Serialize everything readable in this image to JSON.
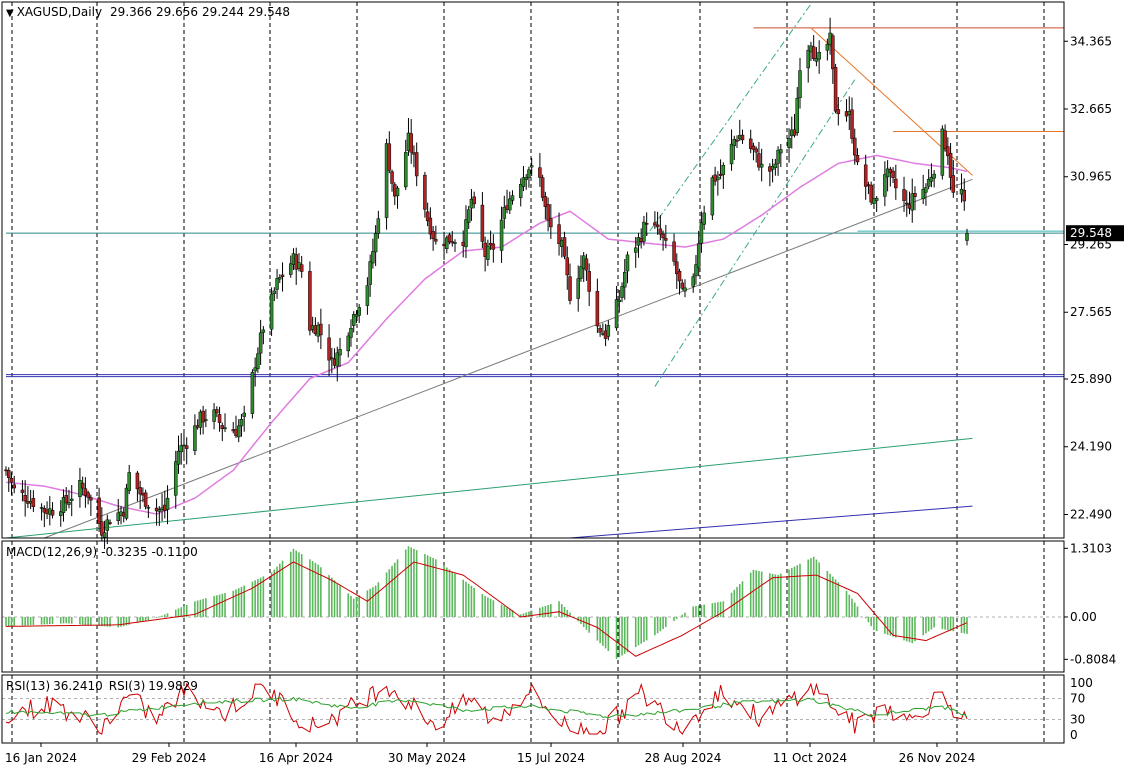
{
  "header": {
    "dropdown_icon": "triangle-down-icon",
    "symbol": "XAGUSD,Daily",
    "open": "29.366",
    "high": "29.656",
    "low": "29.244",
    "close": "29.548"
  },
  "price_axis": {
    "ticks": [
      "34.365",
      "32.665",
      "30.965",
      "29.265",
      "27.565",
      "25.890",
      "24.190",
      "22.490"
    ],
    "last_price_label": "29.548"
  },
  "time_axis": {
    "labels": [
      "16 Jan 2024",
      "29 Feb 2024",
      "16 Apr 2024",
      "30 May 2024",
      "15 Jul 2024",
      "28 Aug 2024",
      "11 Oct 2024",
      "26 Nov 2024"
    ]
  },
  "macd": {
    "label": "MACD(12,26,9)",
    "main": "-0.3235",
    "signal": "-0.1100",
    "ticks": [
      "1.3103",
      "0.00",
      "-0.8084"
    ]
  },
  "rsi": {
    "label1": "RSI(13)",
    "value1": "36.2410",
    "label2": "RSI(3)",
    "value2": "19.9829",
    "ticks": [
      "100",
      "70",
      "30",
      "0"
    ]
  },
  "colors": {
    "bull": "#2e8b2e",
    "bear": "#b22222",
    "ma": "#e07be0",
    "macd_hist": "#5cb85c",
    "macd_signal": "#cc0000",
    "rsi13": "#2ca02c",
    "rsi3": "#cc0000",
    "trend_orange": "#e8742a",
    "channel": "#3aa88a",
    "horizontal_blue": "#3030b0"
  },
  "chart_data": {
    "type": "candlestick",
    "symbol": "XAGUSD",
    "timeframe": "Daily",
    "x_range": [
      "2024-01-02",
      "2024-12-18"
    ],
    "ylim": [
      21.9,
      35.35
    ],
    "grid": "vertical dashed at date labels",
    "close_path": [
      [
        "2024-01-02",
        23.6
      ],
      [
        "2024-01-05",
        23.1
      ],
      [
        "2024-01-10",
        22.9
      ],
      [
        "2024-01-16",
        22.6
      ],
      [
        "2024-01-19",
        22.6
      ],
      [
        "2024-01-24",
        22.8
      ],
      [
        "2024-01-29",
        23.2
      ],
      [
        "2024-02-01",
        23.0
      ],
      [
        "2024-02-06",
        22.1
      ],
      [
        "2024-02-09",
        22.4
      ],
      [
        "2024-02-14",
        22.6
      ],
      [
        "2024-02-16",
        23.5
      ],
      [
        "2024-02-21",
        22.9
      ],
      [
        "2024-02-26",
        22.6
      ],
      [
        "2024-02-29",
        22.6
      ],
      [
        "2024-03-05",
        24.1
      ],
      [
        "2024-03-08",
        24.3
      ],
      [
        "2024-03-13",
        24.9
      ],
      [
        "2024-03-18",
        25.0
      ],
      [
        "2024-03-21",
        24.7
      ],
      [
        "2024-03-26",
        24.6
      ],
      [
        "2024-03-29",
        24.9
      ],
      [
        "2024-04-02",
        26.3
      ],
      [
        "2024-04-05",
        27.2
      ],
      [
        "2024-04-10",
        28.3
      ],
      [
        "2024-04-12",
        28.5
      ],
      [
        "2024-04-16",
        28.9
      ],
      [
        "2024-04-19",
        28.6
      ],
      [
        "2024-04-22",
        27.2
      ],
      [
        "2024-04-25",
        27.2
      ],
      [
        "2024-04-30",
        26.3
      ],
      [
        "2024-05-03",
        26.6
      ],
      [
        "2024-05-08",
        27.5
      ],
      [
        "2024-05-13",
        28.3
      ],
      [
        "2024-05-16",
        29.5
      ],
      [
        "2024-05-20",
        31.7
      ],
      [
        "2024-05-23",
        30.4
      ],
      [
        "2024-05-28",
        31.9
      ],
      [
        "2024-05-30",
        31.4
      ],
      [
        "2024-06-04",
        29.9
      ],
      [
        "2024-06-07",
        29.3
      ],
      [
        "2024-06-12",
        29.4
      ],
      [
        "2024-06-17",
        29.4
      ],
      [
        "2024-06-20",
        30.4
      ],
      [
        "2024-06-25",
        29.0
      ],
      [
        "2024-06-28",
        29.2
      ],
      [
        "2024-07-03",
        30.3
      ],
      [
        "2024-07-08",
        30.9
      ],
      [
        "2024-07-11",
        31.2
      ],
      [
        "2024-07-15",
        30.9
      ],
      [
        "2024-07-18",
        29.8
      ],
      [
        "2024-07-23",
        29.2
      ],
      [
        "2024-07-26",
        28.0
      ],
      [
        "2024-07-31",
        28.9
      ],
      [
        "2024-08-05",
        27.2
      ],
      [
        "2024-08-08",
        27.0
      ],
      [
        "2024-08-13",
        27.9
      ],
      [
        "2024-08-16",
        28.9
      ],
      [
        "2024-08-21",
        29.5
      ],
      [
        "2024-08-23",
        29.9
      ],
      [
        "2024-08-28",
        29.5
      ],
      [
        "2024-09-02",
        28.8
      ],
      [
        "2024-09-05",
        28.0
      ],
      [
        "2024-09-09",
        28.3
      ],
      [
        "2024-09-12",
        29.9
      ],
      [
        "2024-09-16",
        30.9
      ],
      [
        "2024-09-19",
        31.0
      ],
      [
        "2024-09-24",
        31.9
      ],
      [
        "2024-09-26",
        32.0
      ],
      [
        "2024-10-01",
        31.6
      ],
      [
        "2024-10-04",
        31.2
      ],
      [
        "2024-10-08",
        31.1
      ],
      [
        "2024-10-11",
        31.7
      ],
      [
        "2024-10-16",
        32.1
      ],
      [
        "2024-10-18",
        33.8
      ],
      [
        "2024-10-22",
        34.4
      ],
      [
        "2024-10-24",
        33.8
      ],
      [
        "2024-10-29",
        34.4
      ],
      [
        "2024-10-31",
        32.7
      ],
      [
        "2024-11-05",
        32.5
      ],
      [
        "2024-11-08",
        31.2
      ],
      [
        "2024-11-12",
        30.6
      ],
      [
        "2024-11-14",
        30.3
      ],
      [
        "2024-11-18",
        31.1
      ],
      [
        "2024-11-21",
        30.8
      ],
      [
        "2024-11-26",
        30.2
      ],
      [
        "2024-11-29",
        30.5
      ],
      [
        "2024-12-03",
        30.7
      ],
      [
        "2024-12-06",
        31.2
      ],
      [
        "2024-12-09",
        32.0
      ],
      [
        "2024-12-11",
        31.6
      ],
      [
        "2024-12-13",
        30.5
      ],
      [
        "2024-12-16",
        30.6
      ],
      [
        "2024-12-17",
        30.2
      ],
      [
        "2024-12-18",
        29.548
      ]
    ],
    "last_bar": {
      "open": 29.366,
      "high": 29.656,
      "low": 29.244,
      "close": 29.548
    },
    "moving_average_path": [
      [
        "2024-01-02",
        23.3
      ],
      [
        "2024-01-16",
        23.2
      ],
      [
        "2024-01-29",
        23.0
      ],
      [
        "2024-02-12",
        22.7
      ],
      [
        "2024-02-26",
        22.5
      ],
      [
        "2024-03-11",
        22.9
      ],
      [
        "2024-03-25",
        23.6
      ],
      [
        "2024-04-08",
        24.8
      ],
      [
        "2024-04-22",
        25.9
      ],
      [
        "2024-05-06",
        26.3
      ],
      [
        "2024-05-20",
        27.4
      ],
      [
        "2024-06-03",
        28.4
      ],
      [
        "2024-06-17",
        29.1
      ],
      [
        "2024-07-01",
        29.2
      ],
      [
        "2024-07-15",
        29.8
      ],
      [
        "2024-07-26",
        30.1
      ],
      [
        "2024-08-09",
        29.4
      ],
      [
        "2024-08-23",
        29.3
      ],
      [
        "2024-09-06",
        29.2
      ],
      [
        "2024-09-20",
        29.4
      ],
      [
        "2024-10-04",
        30.0
      ],
      [
        "2024-10-18",
        30.7
      ],
      [
        "2024-11-01",
        31.3
      ],
      [
        "2024-11-15",
        31.5
      ],
      [
        "2024-11-29",
        31.3
      ],
      [
        "2024-12-11",
        31.2
      ],
      [
        "2024-12-18",
        31.1
      ]
    ],
    "horizontal_lines": [
      {
        "y": 34.7,
        "color": "#c84a2a",
        "from": "2024-10-01"
      },
      {
        "y": 32.1,
        "color": "#e8742a",
        "from": "2024-11-21"
      },
      {
        "y": 29.55,
        "color": "#2a8a8a",
        "from": "2024-01-02"
      },
      {
        "y": 29.6,
        "color": "#3ab0b0",
        "from": "2024-11-08"
      },
      {
        "y": 25.95,
        "color": "#3030b0",
        "from": "2024-01-02"
      },
      {
        "y": 26.0,
        "color": "#3030b0",
        "from": "2024-01-02"
      }
    ],
    "trend_lines": [
      {
        "points": [
          [
            "2024-10-22",
            34.7
          ],
          [
            "2024-12-20",
            31.0
          ]
        ],
        "color": "#e8742a"
      },
      {
        "points": [
          [
            "2024-01-16",
            21.9
          ],
          [
            "2024-12-20",
            30.9
          ]
        ],
        "color": "#7a7a7a"
      },
      {
        "points": [
          [
            "2024-01-02",
            21.9
          ],
          [
            "2024-12-20",
            24.4
          ]
        ],
        "color": "#2ca070"
      },
      {
        "points": [
          [
            "2024-07-26",
            21.9
          ],
          [
            "2024-12-20",
            22.7
          ]
        ],
        "color": "#3030b0"
      }
    ],
    "channel_lines": [
      {
        "points": [
          [
            "2024-08-21",
            29.3
          ],
          [
            "2024-10-22",
            35.3
          ]
        ],
        "color": "#3aa88a"
      },
      {
        "points": [
          [
            "2024-08-26",
            25.7
          ],
          [
            "2024-11-07",
            33.4
          ]
        ],
        "color": "#3aa88a"
      }
    ],
    "macd": {
      "ylim": [
        -1.05,
        1.45
      ],
      "histogram_path": [
        [
          "2024-01-02",
          -0.18
        ],
        [
          "2024-01-24",
          -0.12
        ],
        [
          "2024-02-12",
          -0.2
        ],
        [
          "2024-02-26",
          -0.02
        ],
        [
          "2024-03-11",
          0.3
        ],
        [
          "2024-03-25",
          0.5
        ],
        [
          "2024-04-08",
          0.85
        ],
        [
          "2024-04-16",
          1.3
        ],
        [
          "2024-04-25",
          1.0
        ],
        [
          "2024-05-08",
          0.35
        ],
        [
          "2024-05-16",
          0.6
        ],
        [
          "2024-05-28",
          1.35
        ],
        [
          "2024-06-07",
          1.1
        ],
        [
          "2024-06-25",
          0.4
        ],
        [
          "2024-07-08",
          0.05
        ],
        [
          "2024-07-22",
          0.3
        ],
        [
          "2024-08-02",
          -0.3
        ],
        [
          "2024-08-12",
          -0.8
        ],
        [
          "2024-08-26",
          -0.35
        ],
        [
          "2024-09-09",
          0.2
        ],
        [
          "2024-09-20",
          0.3
        ],
        [
          "2024-10-01",
          0.9
        ],
        [
          "2024-10-10",
          0.8
        ],
        [
          "2024-10-23",
          1.15
        ],
        [
          "2024-11-04",
          0.5
        ],
        [
          "2024-11-14",
          -0.25
        ],
        [
          "2024-11-28",
          -0.5
        ],
        [
          "2024-12-06",
          -0.2
        ],
        [
          "2024-12-18",
          -0.3235
        ]
      ],
      "signal_path": [
        [
          "2024-01-02",
          -0.18
        ],
        [
          "2024-02-12",
          -0.15
        ],
        [
          "2024-03-11",
          0.05
        ],
        [
          "2024-04-01",
          0.55
        ],
        [
          "2024-04-16",
          1.05
        ],
        [
          "2024-04-30",
          0.7
        ],
        [
          "2024-05-13",
          0.3
        ],
        [
          "2024-05-30",
          1.05
        ],
        [
          "2024-06-17",
          0.8
        ],
        [
          "2024-07-08",
          0.0
        ],
        [
          "2024-07-22",
          0.1
        ],
        [
          "2024-08-05",
          -0.2
        ],
        [
          "2024-08-19",
          -0.75
        ],
        [
          "2024-09-05",
          -0.35
        ],
        [
          "2024-09-20",
          0.1
        ],
        [
          "2024-10-08",
          0.75
        ],
        [
          "2024-10-24",
          0.8
        ],
        [
          "2024-11-08",
          0.45
        ],
        [
          "2024-11-21",
          -0.35
        ],
        [
          "2024-12-03",
          -0.45
        ],
        [
          "2024-12-18",
          -0.11
        ]
      ]
    },
    "rsi": {
      "ylim": [
        0,
        100
      ],
      "levels": [
        70,
        30
      ],
      "rsi13_path": [
        [
          "2024-01-02",
          45
        ],
        [
          "2024-02-05",
          38
        ],
        [
          "2024-03-11",
          62
        ],
        [
          "2024-04-16",
          70
        ],
        [
          "2024-05-06",
          52
        ],
        [
          "2024-05-28",
          68
        ],
        [
          "2024-06-17",
          48
        ],
        [
          "2024-07-11",
          55
        ],
        [
          "2024-08-08",
          36
        ],
        [
          "2024-09-02",
          45
        ],
        [
          "2024-09-26",
          62
        ],
        [
          "2024-10-22",
          68
        ],
        [
          "2024-11-14",
          38
        ],
        [
          "2024-12-09",
          55
        ],
        [
          "2024-12-18",
          36.241
        ]
      ],
      "rsi3_path": [
        [
          "2024-01-02",
          40
        ],
        [
          "2024-01-19",
          60
        ],
        [
          "2024-02-06",
          15
        ],
        [
          "2024-02-16",
          75
        ],
        [
          "2024-02-26",
          30
        ],
        [
          "2024-03-08",
          90
        ],
        [
          "2024-03-21",
          40
        ],
        [
          "2024-04-05",
          95
        ],
        [
          "2024-04-22",
          15
        ],
        [
          "2024-05-03",
          40
        ],
        [
          "2024-05-20",
          98
        ],
        [
          "2024-06-07",
          20
        ],
        [
          "2024-06-20",
          70
        ],
        [
          "2024-06-28",
          25
        ],
        [
          "2024-07-11",
          85
        ],
        [
          "2024-07-26",
          10
        ],
        [
          "2024-08-08",
          15
        ],
        [
          "2024-08-21",
          80
        ],
        [
          "2024-09-05",
          15
        ],
        [
          "2024-09-19",
          85
        ],
        [
          "2024-10-04",
          30
        ],
        [
          "2024-10-22",
          95
        ],
        [
          "2024-11-08",
          15
        ],
        [
          "2024-11-18",
          60
        ],
        [
          "2024-11-26",
          25
        ],
        [
          "2024-12-09",
          80
        ],
        [
          "2024-12-18",
          19.983
        ]
      ]
    }
  }
}
